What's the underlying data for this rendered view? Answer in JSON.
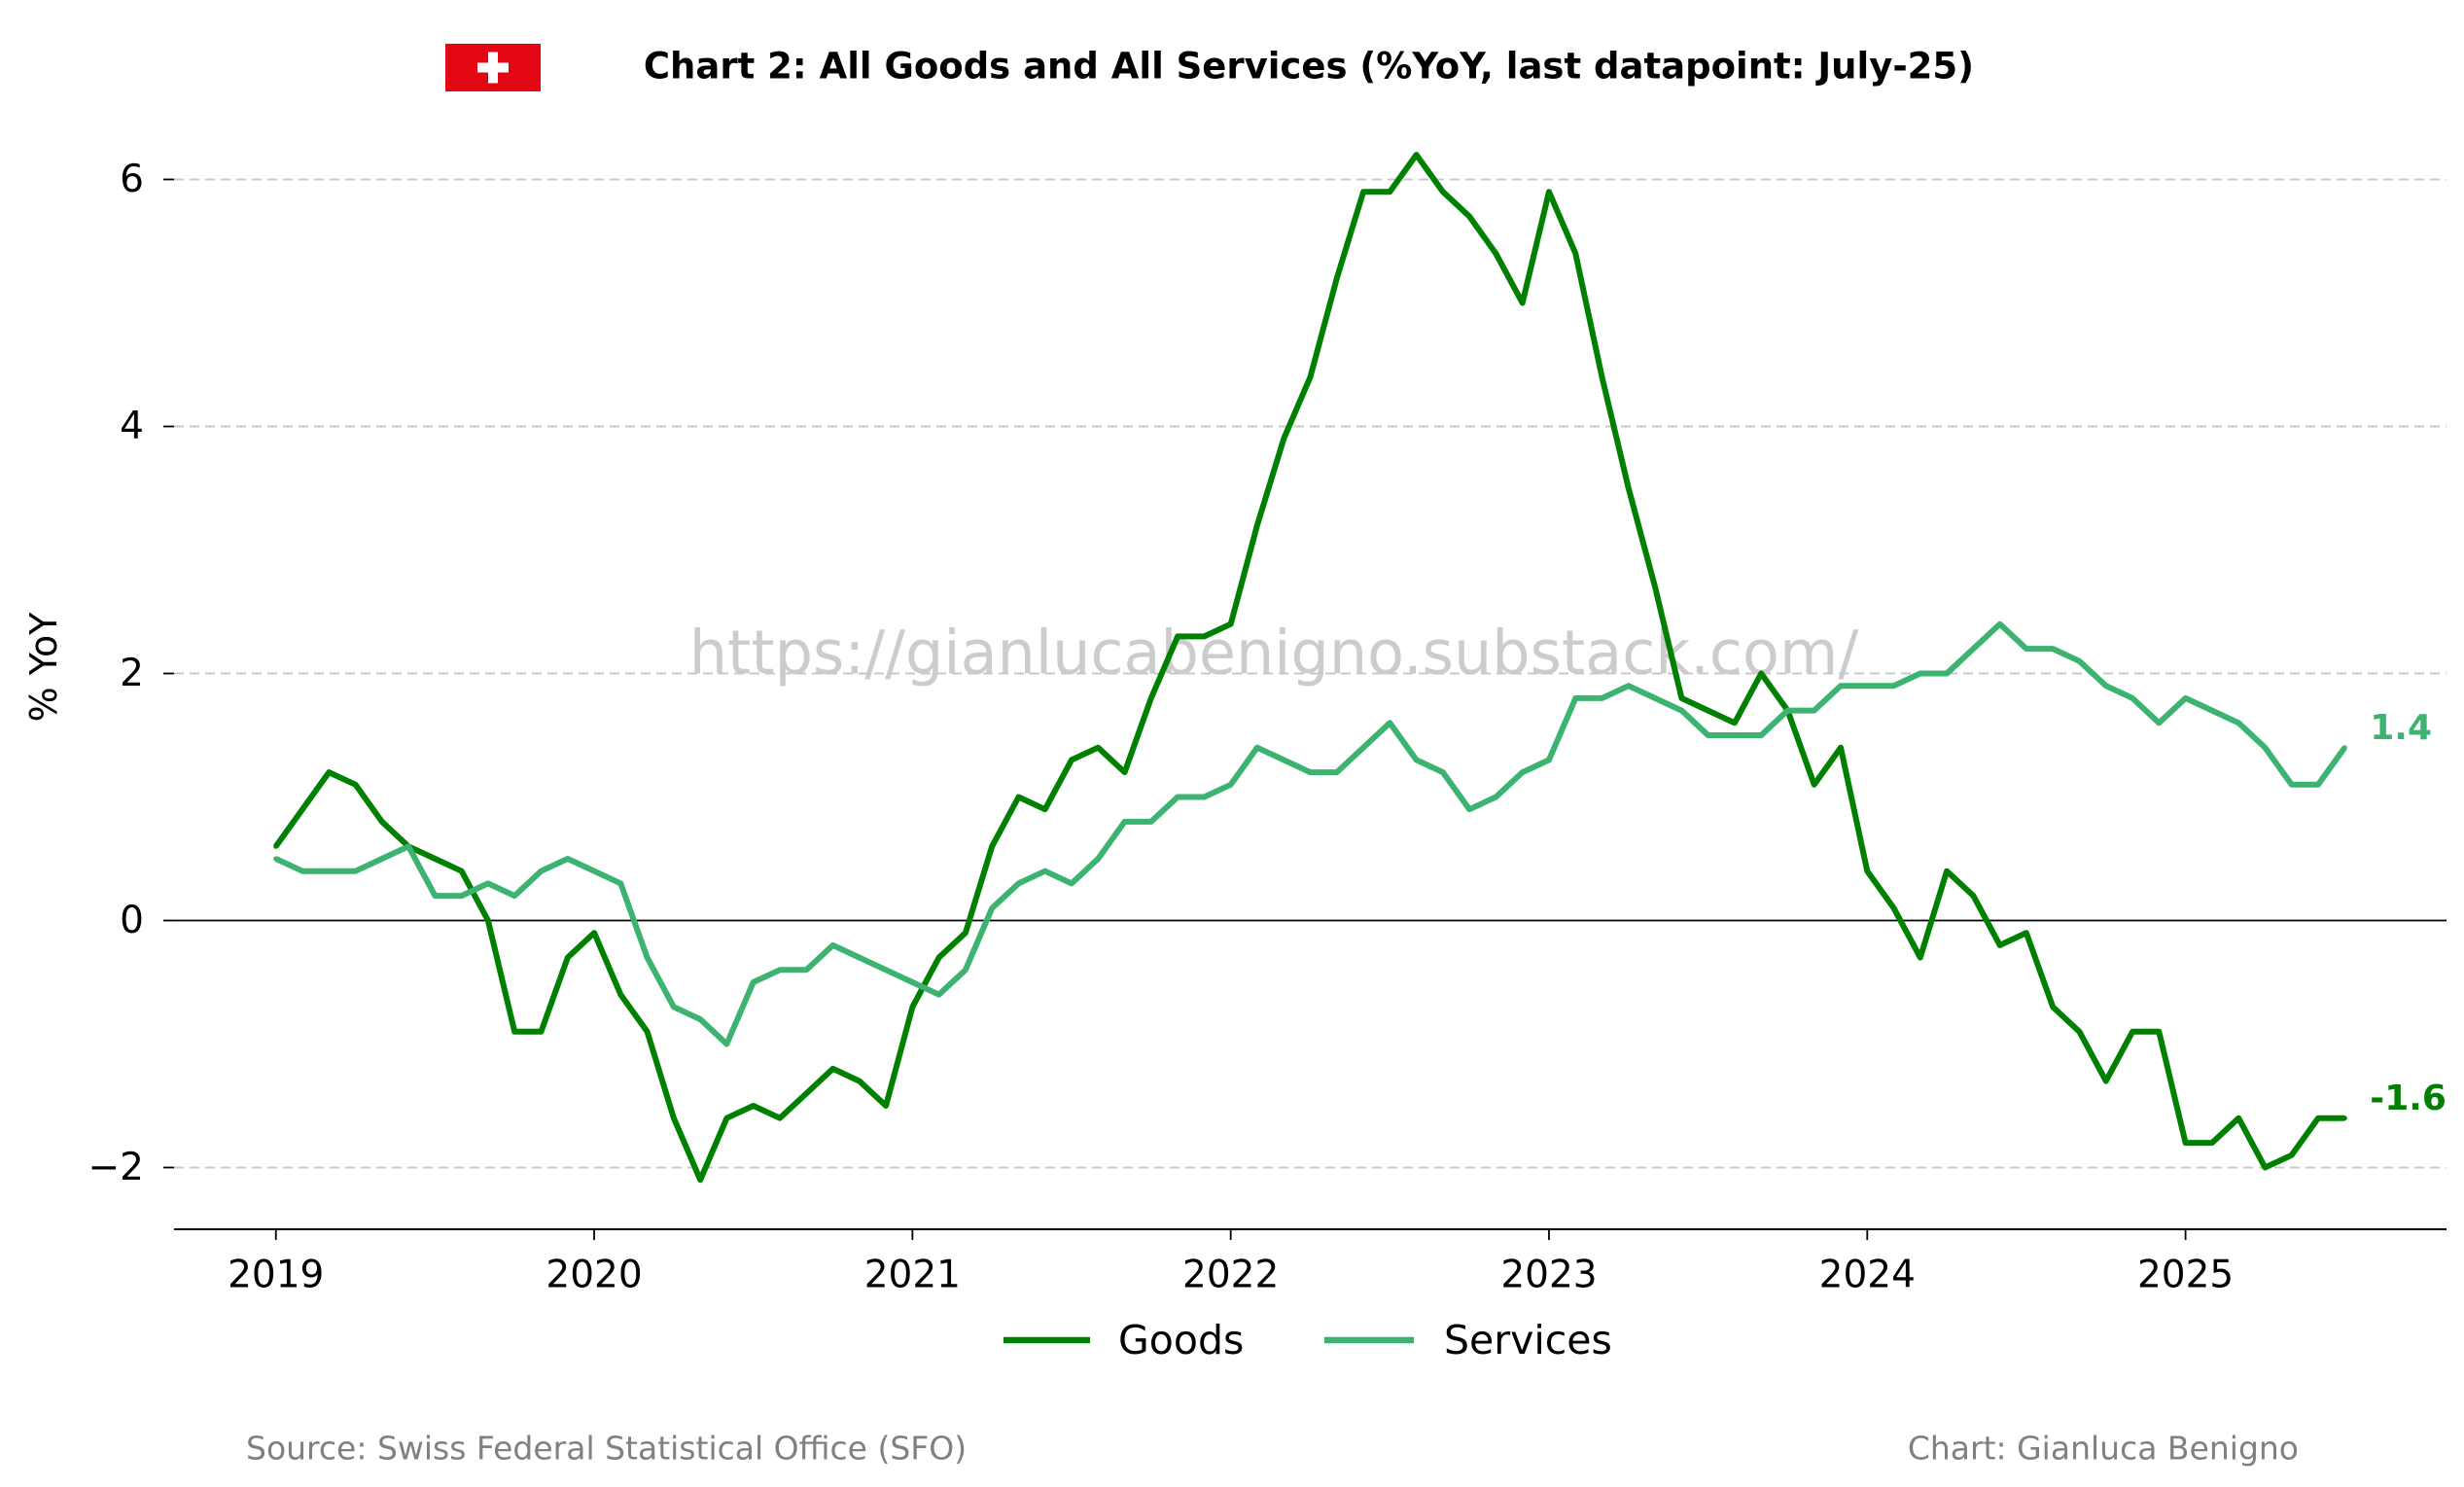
{
  "header": {
    "flag_icon": "swiss-flag-icon"
  },
  "watermark": "https://gianlucabenigno.substack.com/",
  "footer": {
    "source": "Source: Swiss Federal Statistical Office (SFO)",
    "credit": "Chart: Gianluca Benigno"
  },
  "colors": {
    "flag": "#e30613",
    "grid": "#c8c8c8",
    "axis": "#000000",
    "watermark": "#c4c4c4",
    "footer_text": "#808080"
  },
  "chart_data": {
    "type": "line",
    "title": "Chart 2: All Goods and All Services (%YoY, last datapoint: July-25)",
    "ylabel": "% YoY",
    "period": {
      "start_year": 2019,
      "start_month": 1,
      "step_months": 1
    },
    "xlim": [
      2018.68,
      2025.82
    ],
    "ylim": [
      -2.5,
      6.5
    ],
    "x_ticks": [
      2019,
      2020,
      2021,
      2022,
      2023,
      2024,
      2025
    ],
    "x_tick_labels": [
      "2019",
      "2020",
      "2021",
      "2022",
      "2023",
      "2024",
      "2025"
    ],
    "y_ticks": [
      6,
      4,
      2,
      0,
      -2
    ],
    "y_tick_labels": [
      "6",
      "4",
      "2",
      "0",
      "−2"
    ],
    "grid": true,
    "zero_line": true,
    "series": [
      {
        "name": "Goods",
        "color": "#008000",
        "end_label": "-1.6",
        "values": [
          0.6,
          0.9,
          1.2,
          1.1,
          0.8,
          0.6,
          0.5,
          0.4,
          0.0,
          -0.9,
          -0.9,
          -0.3,
          -0.1,
          -0.6,
          -0.9,
          -1.6,
          -2.1,
          -1.6,
          -1.5,
          -1.6,
          -1.4,
          -1.2,
          -1.3,
          -1.5,
          -0.7,
          -0.3,
          -0.1,
          0.6,
          1.0,
          0.9,
          1.3,
          1.4,
          1.2,
          1.8,
          2.3,
          2.3,
          2.4,
          3.2,
          3.9,
          4.4,
          5.2,
          5.9,
          5.9,
          6.2,
          5.9,
          5.7,
          5.4,
          5.0,
          5.9,
          5.4,
          4.4,
          3.5,
          2.7,
          1.8,
          1.7,
          1.6,
          2.0,
          1.7,
          1.1,
          1.4,
          0.4,
          0.1,
          -0.3,
          0.4,
          0.2,
          -0.2,
          -0.1,
          -0.7,
          -0.9,
          -1.3,
          -0.9,
          -0.9,
          -1.8,
          -1.8,
          -1.6,
          -2.0,
          -1.9,
          -1.6,
          -1.6
        ]
      },
      {
        "name": "Services",
        "color": "#3cb371",
        "end_label": "1.4",
        "values": [
          0.5,
          0.4,
          0.4,
          0.4,
          0.5,
          0.6,
          0.2,
          0.2,
          0.3,
          0.2,
          0.4,
          0.5,
          0.4,
          0.3,
          -0.3,
          -0.7,
          -0.8,
          -1.0,
          -0.5,
          -0.4,
          -0.4,
          -0.2,
          -0.3,
          -0.4,
          -0.5,
          -0.6,
          -0.4,
          0.1,
          0.3,
          0.4,
          0.3,
          0.5,
          0.8,
          0.8,
          1.0,
          1.0,
          1.1,
          1.4,
          1.3,
          1.2,
          1.2,
          1.4,
          1.6,
          1.3,
          1.2,
          0.9,
          1.0,
          1.2,
          1.3,
          1.8,
          1.8,
          1.9,
          1.8,
          1.7,
          1.5,
          1.5,
          1.5,
          1.7,
          1.7,
          1.9,
          1.9,
          1.9,
          2.0,
          2.0,
          2.2,
          2.4,
          2.2,
          2.2,
          2.1,
          1.9,
          1.8,
          1.6,
          1.8,
          1.7,
          1.6,
          1.4,
          1.1,
          1.1,
          1.4
        ]
      }
    ]
  }
}
